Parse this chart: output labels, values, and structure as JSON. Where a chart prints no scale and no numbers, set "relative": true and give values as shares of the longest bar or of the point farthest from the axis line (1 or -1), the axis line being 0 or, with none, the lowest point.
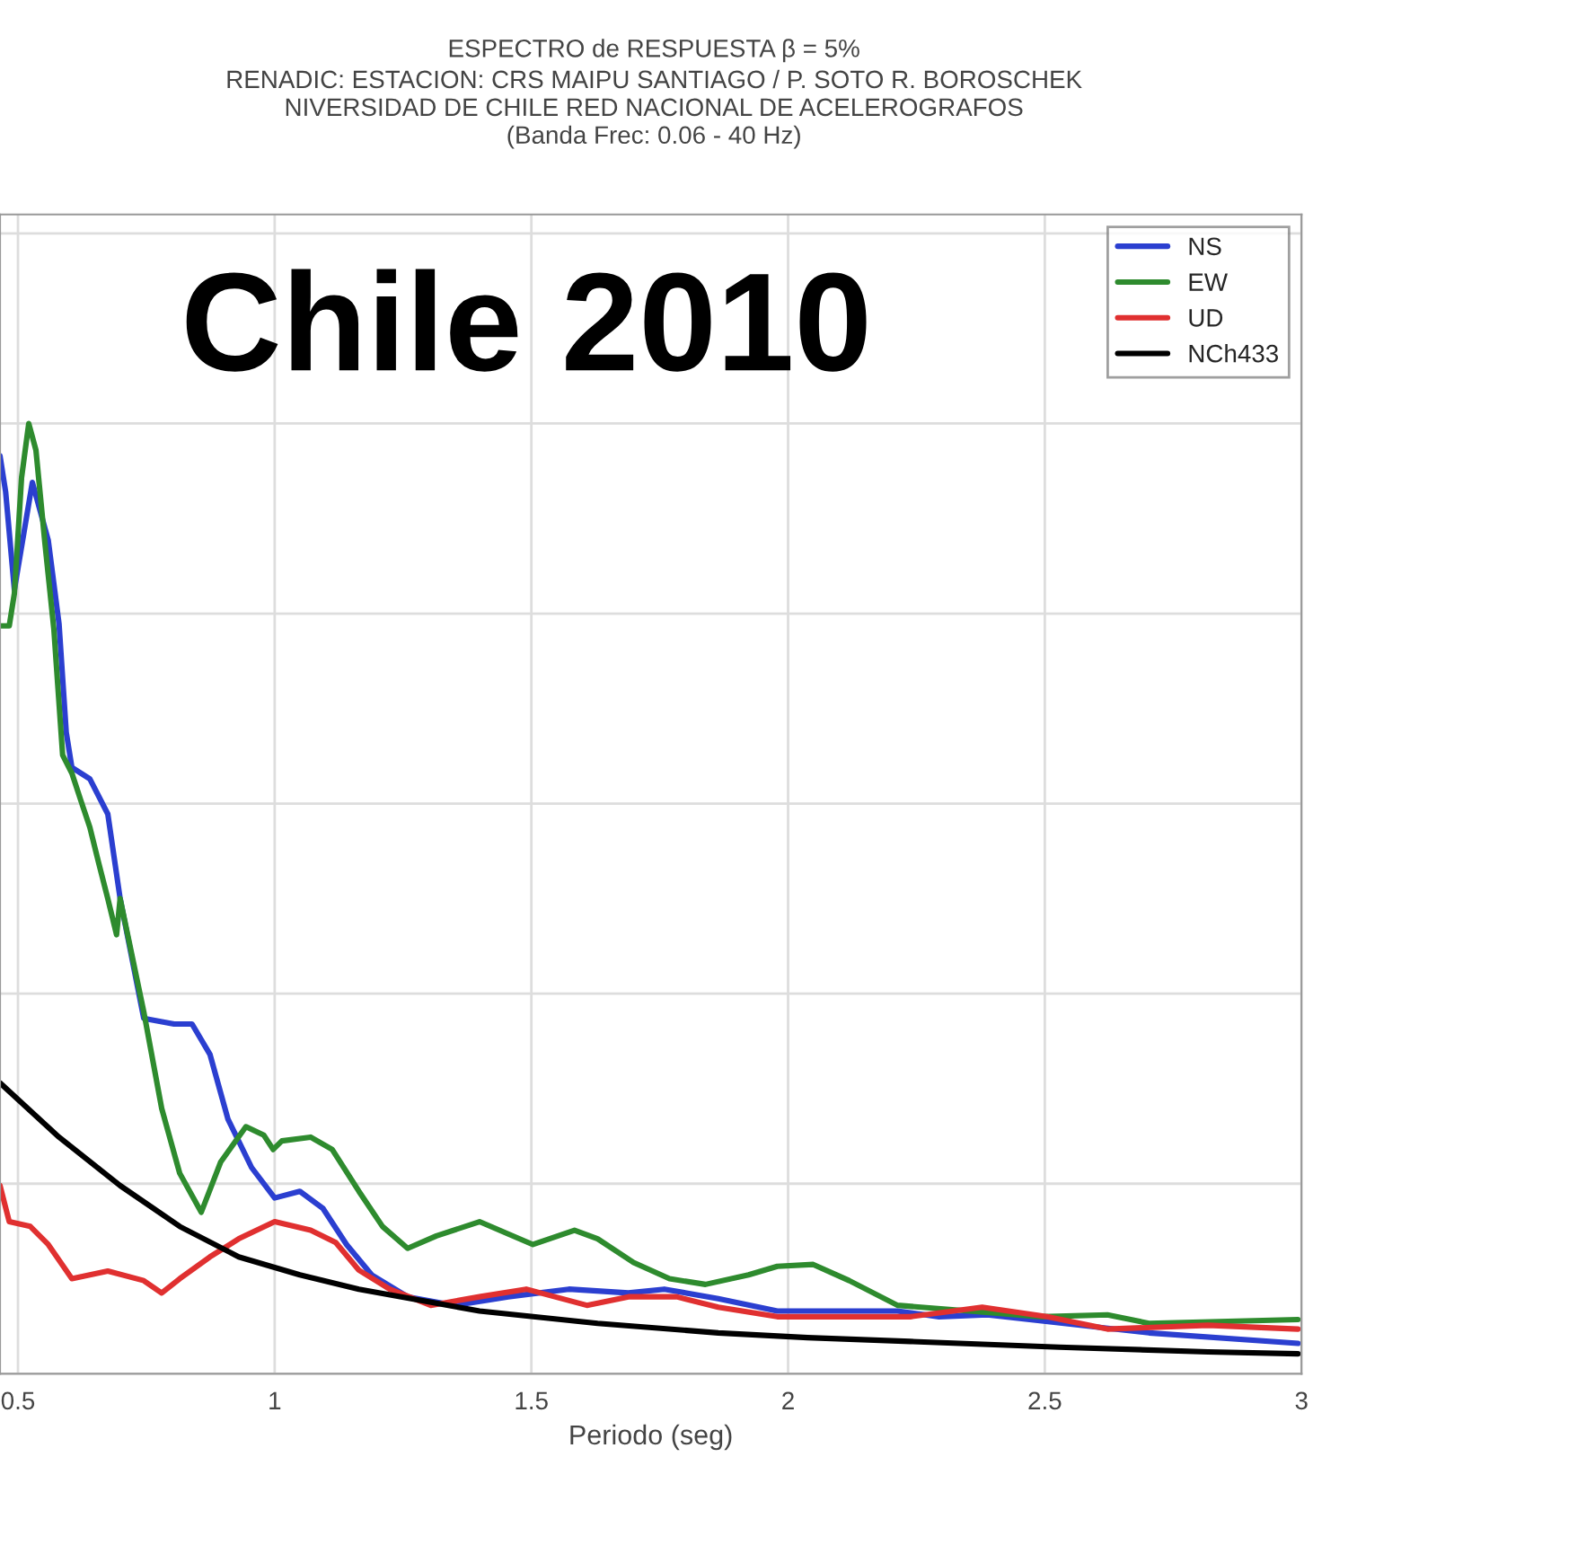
{
  "chart_data": {
    "type": "line",
    "title": "ESPECTRO de RESPUESTA β = 5%",
    "subtitle": "RENADIC: ESTACION: CRS MAIPU SANTIAGO / P. SOTO R. BOROSCHEK\nNIVERSIDAD DE CHILE RED NACIONAL DE ACELEROGRAFOS\n(Banda Frec: 0.06 - 40 Hz)",
    "annotations": [
      "Chile 2010"
    ],
    "xlabel": "Periodo (seg)",
    "relative": true,
    "xlim": [
      0.465,
      3
    ],
    "xticks": [
      {
        "value": 0.5,
        "label": "0.5"
      },
      1,
      {
        "value": 1.5,
        "label": "1.5"
      },
      2,
      {
        "value": 2.5,
        "label": "2.5"
      },
      3
    ],
    "tick_labels": "x",
    "grid": true,
    "legend": "top right",
    "line_style": "solid",
    "marker": "none",
    "series": [
      {
        "name": "NS",
        "color": "#2b3fd0",
        "x": [
          0.465,
          0.476,
          0.493,
          0.528,
          0.559,
          0.58,
          0.594,
          0.605,
          0.64,
          0.675,
          0.699,
          0.745,
          0.804,
          0.839,
          0.874,
          0.909,
          0.955,
          1.0,
          1.049,
          1.094,
          1.14,
          1.189,
          1.259,
          1.35,
          1.455,
          1.573,
          1.689,
          1.759,
          1.864,
          1.979,
          2.003,
          2.213,
          2.294,
          2.388,
          2.703,
          2.993
        ],
        "values": [
          0.966,
          0.928,
          0.825,
          0.938,
          0.877,
          0.789,
          0.675,
          0.638,
          0.626,
          0.589,
          0.5,
          0.374,
          0.368,
          0.368,
          0.336,
          0.268,
          0.217,
          0.185,
          0.192,
          0.174,
          0.136,
          0.104,
          0.081,
          0.072,
          0.081,
          0.089,
          0.085,
          0.089,
          0.079,
          0.066,
          0.066,
          0.066,
          0.06,
          0.062,
          0.043,
          0.032
        ]
      },
      {
        "name": "EW",
        "color": "#2e8b2e",
        "x": [
          0.465,
          0.483,
          0.493,
          0.507,
          0.521,
          0.535,
          0.552,
          0.57,
          0.587,
          0.605,
          0.622,
          0.64,
          0.657,
          0.675,
          0.692,
          0.699,
          0.745,
          0.78,
          0.815,
          0.857,
          0.895,
          0.944,
          0.979,
          0.997,
          1.014,
          1.07,
          1.112,
          1.164,
          1.21,
          1.259,
          1.315,
          1.399,
          1.455,
          1.503,
          1.584,
          1.629,
          1.699,
          1.769,
          1.839,
          1.923,
          1.979,
          2.049,
          2.119,
          2.213,
          2.353,
          2.493,
          2.622,
          2.703,
          2.993
        ],
        "values": [
          0.787,
          0.787,
          0.821,
          0.943,
          1.0,
          0.972,
          0.877,
          0.783,
          0.651,
          0.632,
          0.604,
          0.575,
          0.538,
          0.5,
          0.462,
          0.5,
          0.381,
          0.279,
          0.211,
          0.17,
          0.223,
          0.26,
          0.251,
          0.236,
          0.245,
          0.249,
          0.236,
          0.192,
          0.155,
          0.132,
          0.145,
          0.16,
          0.147,
          0.136,
          0.151,
          0.142,
          0.117,
          0.1,
          0.094,
          0.104,
          0.113,
          0.115,
          0.098,
          0.072,
          0.066,
          0.06,
          0.062,
          0.053,
          0.057
        ]
      },
      {
        "name": "UD",
        "color": "#e03030",
        "x": [
          0.465,
          0.483,
          0.524,
          0.559,
          0.605,
          0.675,
          0.745,
          0.78,
          0.815,
          0.874,
          0.93,
          1.0,
          1.07,
          1.119,
          1.164,
          1.224,
          1.304,
          1.399,
          1.49,
          1.608,
          1.689,
          1.783,
          1.864,
          1.979,
          2.003,
          2.238,
          2.378,
          2.504,
          2.622,
          2.818,
          2.993
        ],
        "values": [
          0.198,
          0.16,
          0.155,
          0.136,
          0.1,
          0.108,
          0.098,
          0.085,
          0.1,
          0.123,
          0.142,
          0.16,
          0.151,
          0.138,
          0.109,
          0.089,
          0.072,
          0.081,
          0.089,
          0.072,
          0.081,
          0.081,
          0.07,
          0.06,
          0.06,
          0.06,
          0.07,
          0.06,
          0.047,
          0.051,
          0.047
        ]
      },
      {
        "name": "NCh433",
        "color": "#000000",
        "x": [
          0.465,
          0.58,
          0.699,
          0.815,
          0.93,
          1.049,
          1.164,
          1.399,
          1.629,
          1.864,
          2.038,
          2.238,
          2.528,
          2.818,
          2.993
        ],
        "values": [
          0.306,
          0.249,
          0.198,
          0.155,
          0.123,
          0.104,
          0.089,
          0.066,
          0.053,
          0.043,
          0.038,
          0.034,
          0.028,
          0.023,
          0.021
        ]
      }
    ]
  }
}
